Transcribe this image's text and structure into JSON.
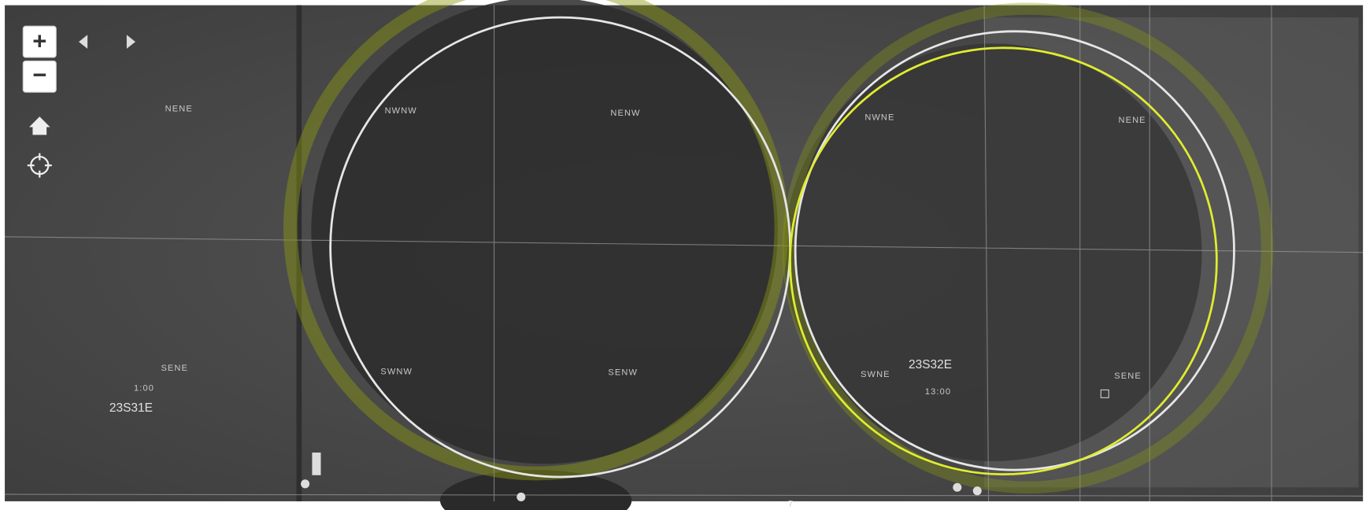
{
  "controls": {
    "zoom_in": "+",
    "zoom_out": "−"
  },
  "labels": [
    "NENE",
    "NWNW",
    "NENW",
    "NWNE",
    "NENE",
    "SENE",
    "SWNW",
    "SENW",
    "SWNE",
    "SENE",
    "1:00",
    "23S31E",
    "23S32E",
    "13:00"
  ],
  "bottom_label": "7"
}
